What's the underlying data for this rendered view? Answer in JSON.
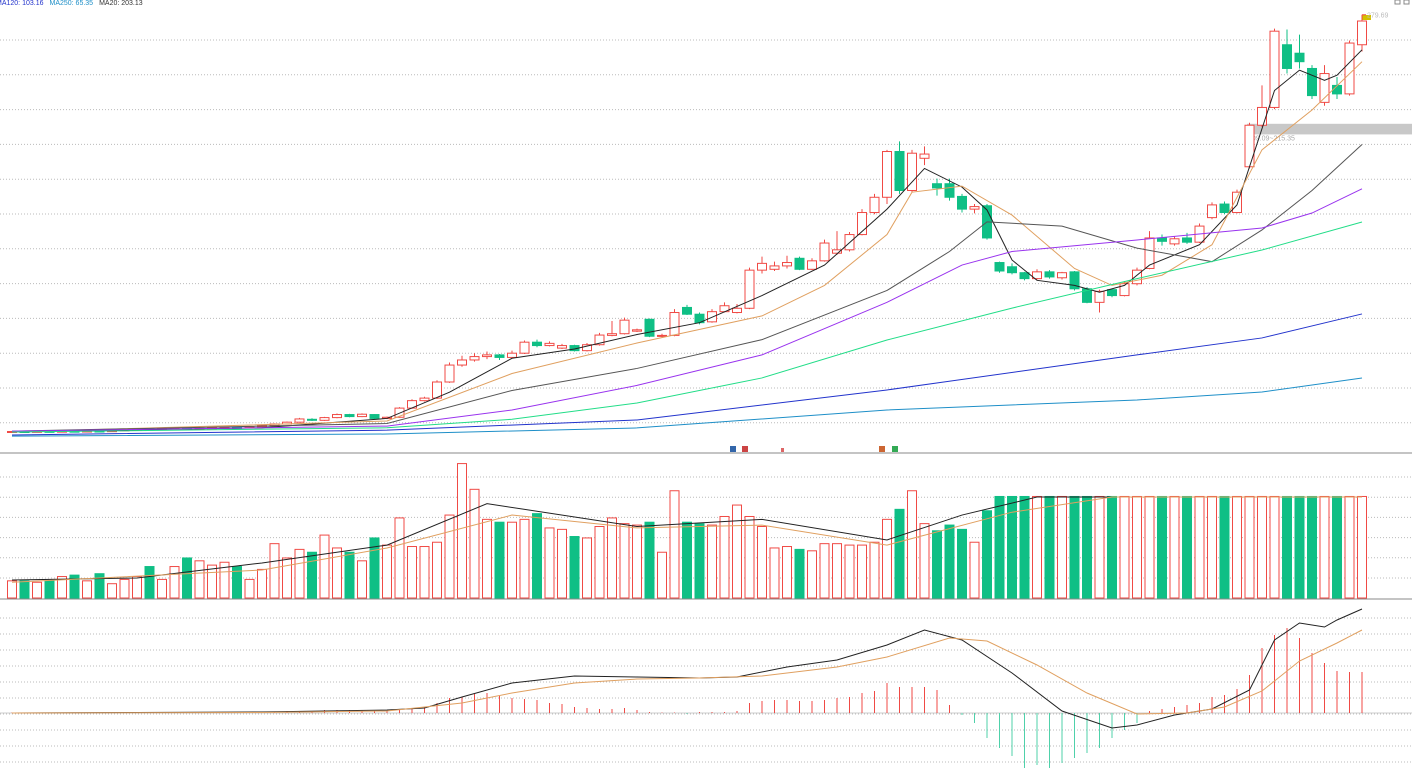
{
  "chart_data": {
    "type": "candlestick",
    "legend": [
      "MA120: 103.16",
      "MA250: 65.35",
      "MA20: 203.13"
    ],
    "legend_colors": [
      "#2233cc",
      "#1e8fc8",
      "#333333"
    ],
    "up_color": "#f04a45",
    "down_color": "#0fbf85",
    "ylim": [
      21.7,
      288.4
    ],
    "open": [
      33.5,
      33.8,
      33.6,
      33.9,
      33.7,
      34.0,
      33.8,
      34.1,
      33.9,
      34.3,
      34.8,
      35.2,
      34.9,
      35.4,
      35.9,
      35.3,
      35.7,
      35.8,
      36.2,
      35.9,
      36.5,
      37.3,
      38.2,
      39.3,
      41.0,
      40.4,
      42.0,
      43.8,
      42.6,
      43.8,
      41.5,
      42.2,
      47.6,
      52.0,
      53.5,
      63.0,
      73.0,
      76.0,
      78.0,
      79.0,
      77.5,
      80.0,
      86.5,
      84.5,
      83.0,
      84.5,
      81.5,
      85.0,
      90.5,
      91.5,
      93.0,
      100.0,
      90.0,
      90.5,
      107.0,
      103.0,
      98.5,
      104.5,
      104.0,
      106.5,
      129.0,
      129.5,
      131.5,
      136.0,
      129.5,
      134.5,
      139.0,
      141.0,
      150.0,
      163.0,
      172.0,
      199.0,
      176.0,
      195.0,
      180.0,
      180.0,
      172.5,
      165.0,
      167.0,
      133.5,
      131.0,
      127.5,
      124.0,
      128.0,
      124.5,
      128.0,
      118.0,
      110.0,
      117.5,
      114.0,
      121.0,
      130.0,
      148.0,
      144.5,
      148.0,
      145.5,
      160.0,
      168.0,
      163.0,
      190.0,
      214.5,
      225.0,
      262.0,
      257.0,
      248.0,
      228.0,
      238.0,
      233.0,
      262.0
    ],
    "high": [
      34.0,
      34.0,
      34.1,
      34.2,
      34.3,
      34.2,
      34.4,
      34.3,
      34.6,
      35.0,
      35.5,
      35.4,
      35.7,
      36.2,
      36.1,
      36.0,
      36.3,
      36.6,
      36.5,
      36.9,
      37.6,
      38.6,
      39.7,
      41.8,
      41.6,
      42.4,
      44.4,
      44.2,
      44.5,
      44.0,
      42.6,
      48.2,
      52.8,
      54.3,
      64.0,
      74.5,
      78.5,
      80.0,
      81.0,
      79.5,
      81.5,
      87.5,
      88.0,
      87.0,
      85.5,
      85.0,
      86.0,
      92.0,
      99.0,
      101.0,
      94.5,
      100.5,
      91.5,
      106.0,
      108.5,
      104.0,
      106.0,
      110.0,
      109.0,
      130.5,
      137.0,
      134.0,
      137.5,
      137.0,
      136.0,
      147.0,
      152.0,
      151.5,
      165.0,
      174.0,
      200.0,
      205.0,
      200.0,
      202.0,
      183.0,
      183.0,
      174.0,
      168.0,
      168.0,
      134.0,
      133.0,
      128.0,
      129.5,
      129.0,
      128.0,
      128.5,
      119.0,
      117.5,
      118.0,
      122.5,
      130.5,
      152.0,
      150.0,
      149.0,
      151.0,
      156.5,
      169.0,
      169.5,
      176.5,
      216.0,
      238.0,
      271.5,
      271.0,
      268.0,
      250.0,
      250.0,
      243.0,
      264.5,
      279.69
    ],
    "low": [
      33.2,
      33.3,
      33.4,
      33.5,
      33.5,
      33.6,
      33.6,
      33.7,
      33.8,
      34.1,
      34.6,
      34.6,
      34.7,
      35.2,
      35.0,
      35.1,
      35.4,
      35.6,
      35.6,
      35.7,
      36.2,
      37.0,
      37.9,
      39.0,
      40.0,
      40.1,
      41.6,
      42.2,
      42.3,
      41.0,
      41.1,
      42.0,
      47.2,
      51.5,
      53.0,
      62.5,
      72.0,
      75.0,
      76.5,
      76.0,
      77.0,
      79.5,
      83.5,
      84.0,
      82.5,
      81.0,
      81.0,
      84.5,
      90.0,
      91.0,
      92.5,
      89.5,
      89.5,
      90.0,
      102.5,
      97.0,
      98.0,
      104.0,
      103.5,
      106.0,
      127.0,
      128.5,
      130.0,
      129.0,
      129.0,
      134.0,
      138.0,
      140.0,
      149.5,
      162.0,
      168.0,
      174.0,
      175.0,
      191.0,
      173.0,
      170.0,
      163.0,
      162.5,
      147.0,
      127.5,
      126.5,
      123.0,
      123.5,
      124.0,
      123.5,
      117.0,
      109.5,
      104.0,
      113.0,
      113.5,
      120.0,
      129.5,
      143.5,
      143.5,
      144.5,
      145.0,
      159.0,
      162.0,
      162.5,
      189.0,
      213.5,
      224.0,
      245.0,
      248.0,
      230.0,
      226.0,
      230.0,
      232.0,
      258.0
    ],
    "close": [
      33.8,
      33.6,
      33.9,
      33.7,
      34.0,
      33.8,
      34.1,
      33.9,
      34.3,
      34.8,
      35.2,
      34.9,
      35.4,
      35.9,
      35.3,
      35.7,
      36.0,
      36.3,
      35.9,
      36.5,
      37.3,
      38.2,
      39.3,
      41.2,
      40.4,
      42.0,
      43.8,
      42.6,
      44.0,
      41.5,
      42.2,
      47.6,
      52.0,
      53.5,
      63.0,
      73.0,
      76.0,
      78.0,
      79.0,
      77.5,
      80.0,
      86.5,
      84.5,
      85.8,
      84.5,
      81.5,
      85.0,
      90.7,
      91.5,
      99.5,
      93.8,
      90.0,
      90.5,
      104.0,
      103.0,
      98.0,
      104.5,
      108.0,
      106.5,
      129.0,
      133.0,
      131.5,
      133.5,
      129.5,
      134.5,
      145.0,
      141.0,
      150.0,
      163.0,
      172.0,
      199.0,
      176.0,
      198.0,
      197.5,
      177.5,
      172.0,
      165.0,
      166.5,
      148.0,
      128.5,
      127.5,
      124.0,
      128.0,
      125.0,
      127.5,
      118.0,
      110.0,
      116.5,
      114.0,
      121.0,
      129.0,
      148.0,
      146.0,
      147.5,
      145.5,
      155.0,
      167.5,
      163.0,
      175.0,
      214.5,
      225.0,
      270.0,
      248.0,
      252.0,
      232.0,
      245.0,
      233.0,
      263.0,
      276.0
    ],
    "max_label": "279.69",
    "zone": {
      "low": 209.09,
      "high": 215.35,
      "label": "209.09~215.35",
      "color": "#c8c8c8"
    },
    "ma_series": [
      {
        "color": "#222222",
        "x": [
          0,
          20,
          30,
          35,
          40,
          45,
          50,
          55,
          60,
          65,
          70,
          73,
          76,
          78,
          80,
          82,
          85,
          87,
          89,
          91,
          95,
          98,
          101,
          103,
          105,
          106,
          108
        ],
        "values": [
          33.5,
          36,
          41.5,
          57,
          77,
          82.5,
          91,
          98,
          114,
          132,
          165,
          189,
          178,
          164.5,
          135,
          123,
          120,
          116,
          120,
          132,
          144,
          167.5,
          235,
          247,
          241,
          244,
          259
        ]
      },
      {
        "color": "#e0a060",
        "x": [
          0,
          30,
          40,
          50,
          60,
          65,
          70,
          72,
          76,
          80,
          85,
          88,
          92,
          96,
          100,
          104,
          108
        ],
        "values": [
          33.5,
          40,
          68,
          86,
          102,
          120,
          150,
          175,
          178.6,
          161.5,
          130,
          120,
          126,
          144,
          200,
          223.5,
          252
        ]
      },
      {
        "color": "#555555",
        "x": [
          0,
          30,
          40,
          50,
          60,
          70,
          75,
          78,
          84,
          90,
          96,
          100,
          104,
          108
        ],
        "values": [
          34,
          38.5,
          58,
          71,
          88,
          117,
          140,
          157.5,
          155,
          142,
          134,
          152.7,
          176,
          203.13
        ]
      },
      {
        "color": "#9933ee",
        "x": [
          0,
          30,
          40,
          50,
          60,
          70,
          76,
          80,
          90,
          100,
          104,
          108
        ],
        "values": [
          34,
          37,
          46.5,
          61,
          79,
          110,
          132,
          140,
          146.8,
          153.9,
          162.7,
          177
        ]
      },
      {
        "color": "#22dd88",
        "x": [
          0,
          30,
          40,
          50,
          60,
          70,
          80,
          90,
          100,
          108
        ],
        "values": [
          33.5,
          36,
          41,
          50.6,
          65.4,
          87.8,
          106.6,
          124,
          140.9,
          157.4
        ]
      },
      {
        "color": "#2233cc",
        "x": [
          0,
          30,
          50,
          70,
          90,
          100,
          108
        ],
        "values": [
          31.7,
          34.6,
          40.6,
          58.3,
          79,
          89,
          103.16
        ]
      },
      {
        "color": "#1e8fc8",
        "x": [
          0,
          30,
          50,
          70,
          90,
          100,
          108
        ],
        "values": [
          31.1,
          32.3,
          35.9,
          46.5,
          52.4,
          57.1,
          65.35
        ]
      }
    ],
    "volume": {
      "ylim": [
        0,
        100
      ],
      "values": [
        12,
        12,
        11,
        12,
        15,
        16,
        12,
        17,
        10,
        13,
        15,
        22,
        13,
        22,
        28,
        26,
        23,
        25,
        22,
        13,
        20,
        38,
        28,
        34,
        32,
        44,
        35,
        32,
        26,
        42,
        37,
        56,
        36,
        36,
        39,
        58,
        94,
        76,
        55,
        53,
        53,
        55,
        59,
        49,
        48,
        43,
        42,
        50,
        56,
        52,
        51,
        53,
        32,
        75,
        53,
        52,
        51,
        57,
        65,
        57,
        50,
        35,
        36,
        34,
        33,
        38,
        38,
        37,
        37,
        39,
        55,
        62,
        75,
        52,
        47,
        51,
        48,
        39,
        61,
        71,
        71,
        71,
        71,
        71,
        71,
        71,
        71,
        71,
        71,
        71,
        71,
        71,
        71,
        71,
        71,
        71,
        71,
        71,
        71,
        71,
        71,
        71,
        71,
        71,
        71,
        71,
        71,
        71,
        71
      ],
      "lines": [
        {
          "color": "#222222",
          "x": [
            0,
            10,
            20,
            30,
            38,
            50,
            60,
            70,
            76,
            82,
            108
          ],
          "values": [
            12.6,
            14,
            24.5,
            37,
            66,
            50,
            55,
            40.6,
            58,
            70.6,
            70.6
          ]
        },
        {
          "color": "#e0a060",
          "x": [
            0,
            20,
            30,
            40,
            50,
            60,
            70,
            80,
            88,
            108
          ],
          "values": [
            11,
            19.6,
            35,
            58,
            49,
            51,
            37,
            60,
            70.6,
            70.6
          ]
        }
      ]
    },
    "macd": {
      "ylim": [
        -5.5,
        11.3
      ],
      "hist": [
        0.05,
        0.05,
        0.05,
        0.05,
        0.05,
        0.05,
        0.05,
        0.05,
        0.05,
        0.05,
        0.05,
        0.05,
        0.05,
        0.05,
        0.05,
        0.05,
        0.05,
        0.05,
        0.05,
        0.05,
        0.1,
        0.1,
        0.2,
        0.2,
        0.2,
        0.3,
        0.3,
        0.3,
        0.2,
        0.2,
        0.2,
        0.4,
        0.5,
        0.6,
        1.0,
        1.5,
        1.6,
        1.9,
        2.0,
        1.7,
        1.5,
        1.4,
        1.3,
        1.0,
        0.9,
        0.6,
        0.5,
        0.4,
        0.4,
        0.5,
        0.3,
        0.1,
        0.05,
        0.05,
        -0.1,
        0.1,
        0.1,
        0.1,
        0.2,
        1.0,
        1.2,
        1.3,
        1.3,
        1.2,
        1.2,
        1.3,
        1.5,
        1.6,
        2.0,
        2.2,
        3.0,
        2.6,
        2.6,
        2.6,
        2.3,
        0.8,
        -0.2,
        -1.0,
        -2.5,
        -3.5,
        -4.3,
        -5.5,
        -5.2,
        -5.5,
        -5.0,
        -4.5,
        -4.0,
        -3.5,
        -2.5,
        -1.7,
        -1.0,
        0.2,
        0.4,
        0.6,
        0.8,
        1.0,
        1.6,
        1.8,
        2.4,
        3.8,
        6.5,
        7.8,
        8.5,
        7.5,
        6.0,
        5.0,
        4.2,
        4.1,
        4.1
      ],
      "lines": [
        {
          "color": "#222222",
          "x": [
            0,
            10,
            20,
            25,
            30,
            33,
            36,
            40,
            45,
            50,
            55,
            58,
            62,
            66,
            70,
            73,
            76,
            80,
            84,
            88,
            90,
            93,
            96,
            99,
            101,
            103,
            105,
            106,
            108
          ],
          "values": [
            0,
            0.05,
            0.1,
            0.2,
            0.3,
            0.5,
            1.6,
            3.0,
            3.7,
            3.6,
            3.5,
            3.6,
            4.6,
            5.3,
            6.8,
            8.3,
            7.3,
            4.0,
            0.2,
            -1.5,
            -1.2,
            -0.2,
            0.4,
            2.3,
            7.3,
            9.0,
            8.6,
            9.3,
            10.4
          ]
        },
        {
          "color": "#e0a060",
          "x": [
            0,
            20,
            30,
            36,
            40,
            45,
            50,
            55,
            60,
            66,
            70,
            75,
            78,
            82,
            86,
            90,
            94,
            97,
            100,
            103,
            106,
            108
          ],
          "values": [
            0,
            0.05,
            0.2,
            1.0,
            2.0,
            3.0,
            3.4,
            3.5,
            3.7,
            4.6,
            5.6,
            7.5,
            7.2,
            4.8,
            2.0,
            -0.1,
            0.0,
            0.6,
            2.2,
            5.2,
            7.0,
            8.3
          ]
        }
      ]
    }
  }
}
